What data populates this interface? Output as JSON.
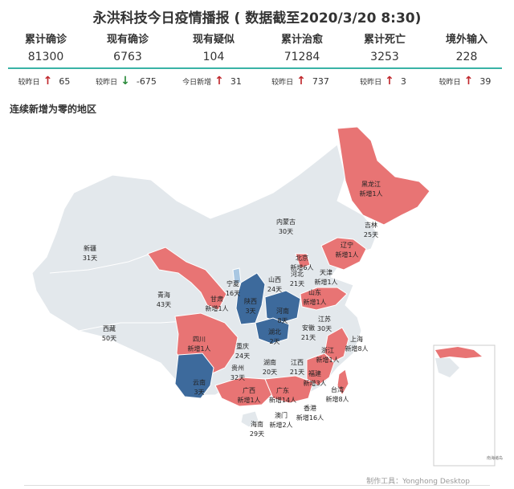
{
  "title": "永洪科技今日疫情播报 ( 数据截至2020/3/20 8:30)",
  "stats": [
    {
      "label": "累计确诊",
      "value": "81300",
      "delta_label": "较昨日",
      "delta_dir": "up",
      "delta_value": "65"
    },
    {
      "label": "现有确诊",
      "value": "6763",
      "delta_label": "较昨日",
      "delta_dir": "down",
      "delta_value": "-675"
    },
    {
      "label": "现有疑似",
      "value": "104",
      "delta_label": "今日新增",
      "delta_dir": "up",
      "delta_value": "31"
    },
    {
      "label": "累计治愈",
      "value": "71284",
      "delta_label": "较昨日",
      "delta_dir": "up",
      "delta_value": "737"
    },
    {
      "label": "累计死亡",
      "value": "3253",
      "delta_label": "较昨日",
      "delta_dir": "up",
      "delta_value": "3"
    },
    {
      "label": "境外输入",
      "value": "228",
      "delta_label": "较昨日",
      "delta_dir": "up",
      "delta_value": "39"
    }
  ],
  "section_title": "连续新增为零的地区",
  "colors": {
    "teal": "#39b3a6",
    "red": "#e87474",
    "blue": "#3d6a9c",
    "grey": "#e3e8ec",
    "up": "#c0282d",
    "down": "#2a8a3a"
  },
  "regions": [
    {
      "id": "heilongjiang",
      "l1": "黑龙江",
      "l2": "新增1人"
    },
    {
      "id": "jilin",
      "l1": "吉林",
      "l2": "25天"
    },
    {
      "id": "liaoning",
      "l1": "辽宁",
      "l2": "新增1人"
    },
    {
      "id": "neimenggu",
      "l1": "内蒙古",
      "l2": "30天"
    },
    {
      "id": "xinjiang",
      "l1": "新疆",
      "l2": "31天"
    },
    {
      "id": "qinghai",
      "l1": "青海",
      "l2": "43天"
    },
    {
      "id": "xizang",
      "l1": "西藏",
      "l2": "50天"
    },
    {
      "id": "gansu",
      "l1": "甘肃",
      "l2": "新增1人"
    },
    {
      "id": "ningxia",
      "l1": "宁夏",
      "l2": "16天"
    },
    {
      "id": "shaanxi",
      "l1": "陕西",
      "l2": "3天"
    },
    {
      "id": "shanxi",
      "l1": "山西",
      "l2": "24天"
    },
    {
      "id": "hebei",
      "l1": "河北",
      "l2": "21天"
    },
    {
      "id": "beijing",
      "l1": "北京",
      "l2": "新增6人"
    },
    {
      "id": "tianjin",
      "l1": "天津",
      "l2": "新增1人"
    },
    {
      "id": "shandong",
      "l1": "山东",
      "l2": "新增1人"
    },
    {
      "id": "henan",
      "l1": "河南",
      "l2": "8天"
    },
    {
      "id": "jiangsu",
      "l1": "江苏",
      "l2": ""
    },
    {
      "id": "anhui",
      "l1": "安徽",
      "l2": "21天"
    },
    {
      "id": "hubei",
      "l1": "湖北",
      "l2": "2天"
    },
    {
      "id": "sichuan",
      "l1": "四川",
      "l2": "新增1人"
    },
    {
      "id": "chongqing",
      "l1": "重庆",
      "l2": "24天"
    },
    {
      "id": "guizhou",
      "l1": "贵州",
      "l2": "32天"
    },
    {
      "id": "hunan",
      "l1": "湖南",
      "l2": "20天"
    },
    {
      "id": "jiangxi",
      "l1": "江西",
      "l2": "21天"
    },
    {
      "id": "zhejiang",
      "l1": "浙江",
      "l2": "新增1人"
    },
    {
      "id": "shanghai",
      "l1": "上海",
      "l2": "新增8人"
    },
    {
      "id": "fujian",
      "l1": "福建",
      "l2": "新增3人"
    },
    {
      "id": "taiwan",
      "l1": "台湾",
      "l2": "新增8人"
    },
    {
      "id": "yunnan",
      "l1": "云南",
      "l2": "3天"
    },
    {
      "id": "guangxi",
      "l1": "广西",
      "l2": "新增1人"
    },
    {
      "id": "guangdong",
      "l1": "广东",
      "l2": "新增14人"
    },
    {
      "id": "xianggang",
      "l1": "香港",
      "l2": "新增16人"
    },
    {
      "id": "aomen",
      "l1": "澳门",
      "l2": "新增2人"
    },
    {
      "id": "hainan",
      "l1": "海南",
      "l2": "29天"
    }
  ],
  "jiangsu_days": "30天",
  "small_note": "南海诸岛",
  "footer": "制作工具：Yonghong Desktop"
}
